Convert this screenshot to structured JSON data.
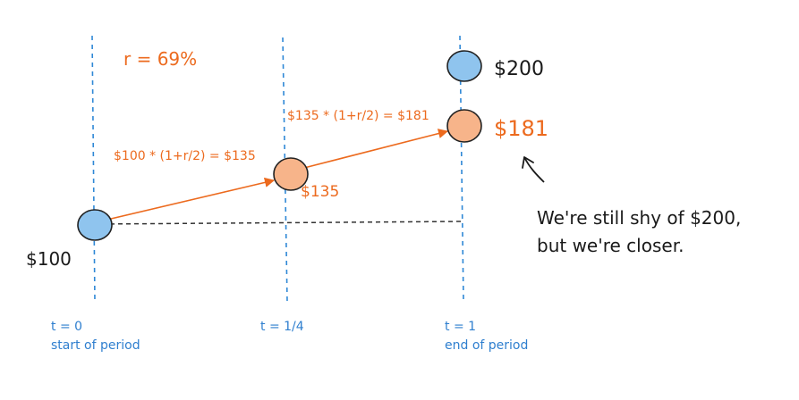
{
  "rate_label": "r = 69%",
  "formula_1": "$100 * (1+r/2) = $135",
  "formula_2": "$135 * (1+r/2) = $181",
  "values": {
    "start": "$100",
    "mid": "$135",
    "end_compounded": "$181",
    "end_target": "$200"
  },
  "time_labels": {
    "t0": "t = 0",
    "t0_caption": "start of period",
    "t_quarter": "t = 1/4",
    "t1": "t = 1",
    "t1_caption": "end of period"
  },
  "note": {
    "line1": "We're still shy of $200,",
    "line2": "but we're closer."
  },
  "colors": {
    "blue_dashed": "#2f88d6",
    "blue_circle": "#8fc4ee",
    "orange": "#ec6a1e",
    "orange_circle": "#f7b48a",
    "baseline_dashed": "#333333"
  }
}
